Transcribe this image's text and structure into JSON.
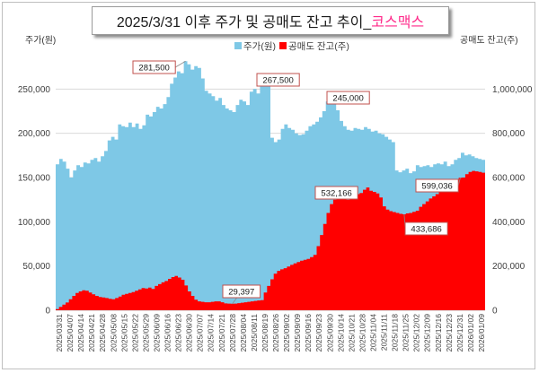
{
  "chart_data": {
    "type": "area",
    "title": "2025/3/31 이후 주가 및 공매도 잔고 추이_",
    "title_company": "코스맥스",
    "left_axis_title": "주가(원)",
    "right_axis_title": "공매도 잔고(주)",
    "ylim_left": [
      0,
      300000
    ],
    "ylim_right": [
      0,
      1200000
    ],
    "left_ticks": [
      "0",
      "50,000",
      "100,000",
      "150,000",
      "200,000",
      "250,000"
    ],
    "right_ticks": [
      "0",
      "200,000",
      "400,000",
      "600,000",
      "800,000",
      "1,000,000"
    ],
    "x_labels": [
      "2025/03/31",
      "2025/04/07",
      "2025/04/14",
      "2025/04/21",
      "2025/04/28",
      "2025/05/08",
      "2025/05/15",
      "2025/05/22",
      "2025/05/29",
      "2025/06/09",
      "2025/06/16",
      "2025/06/23",
      "2025/06/30",
      "2025/07/07",
      "2025/07/14",
      "2025/07/21",
      "2025/07/28",
      "2025/08/04",
      "2025/08/11",
      "2025/08/19",
      "2025/08/26",
      "2025/09/02",
      "2025/09/09",
      "2025/09/16",
      "2025/09/23",
      "2025/09/30",
      "2025/10/14",
      "2025/10/21",
      "2025/10/28",
      "2025/11/04",
      "2025/11/11",
      "2025/11/18",
      "2025/11/25",
      "2025/12/02",
      "2025/12/09",
      "2025/12/16",
      "2025/12/23",
      "2025/12/31",
      "2026/01/02",
      "2026/01/09"
    ],
    "series": [
      {
        "name": "주가(원)",
        "color": "#7ec8e6",
        "axis": "left",
        "values": [
          165000,
          171000,
          168000,
          160000,
          150000,
          158000,
          164000,
          162000,
          167000,
          166000,
          170000,
          172000,
          168000,
          174000,
          180000,
          192000,
          196000,
          193000,
          210000,
          208000,
          207000,
          212000,
          207000,
          211000,
          205000,
          209000,
          221000,
          219000,
          224000,
          230000,
          228000,
          233000,
          241000,
          256000,
          263000,
          270000,
          268000,
          281500,
          278000,
          272000,
          276000,
          274000,
          262000,
          248000,
          245000,
          242000,
          237000,
          240000,
          232000,
          228000,
          226000,
          224000,
          232000,
          238000,
          236000,
          232000,
          247000,
          250000,
          245000,
          262000,
          267500,
          255000,
          195000,
          190000,
          193000,
          205000,
          210000,
          206000,
          204000,
          200000,
          198000,
          199000,
          203000,
          208000,
          210000,
          213000,
          218000,
          225000,
          236000,
          245000,
          240000,
          226000,
          214000,
          208000,
          204000,
          203000,
          206000,
          205000,
          204000,
          207000,
          205000,
          202000,
          203000,
          200000,
          199000,
          196000,
          193000,
          190000,
          158000,
          156000,
          158000,
          160000,
          155000,
          157000,
          164000,
          162000,
          163000,
          164000,
          162000,
          165000,
          166000,
          165000,
          168000,
          163000,
          165000,
          170000,
          172000,
          178000,
          175000,
          176000,
          174000,
          172000,
          171000,
          170000
        ]
      },
      {
        "name": "공매도 잔고(주)",
        "color": "#ff0000",
        "axis": "right",
        "values": [
          5000,
          15000,
          25000,
          35000,
          50000,
          65000,
          78000,
          85000,
          90000,
          88000,
          80000,
          72000,
          65000,
          60000,
          58000,
          55000,
          52000,
          50000,
          55000,
          62000,
          70000,
          74000,
          78000,
          82000,
          88000,
          94000,
          100000,
          98000,
          102000,
          96000,
          110000,
          118000,
          126000,
          132000,
          142000,
          150000,
          155000,
          148000,
          138000,
          112000,
          85000,
          65000,
          48000,
          40000,
          38000,
          36000,
          36000,
          38000,
          40000,
          40000,
          36000,
          31000,
          30000,
          29397,
          30000,
          32000,
          34000,
          36000,
          38000,
          40000,
          42000,
          44000,
          46000,
          80000,
          110000,
          140000,
          165000,
          178000,
          185000,
          190000,
          198000,
          205000,
          212000,
          218000,
          224000,
          228000,
          232000,
          240000,
          250000,
          290000,
          340000,
          390000,
          440000,
          480000,
          500000,
          520000,
          532166,
          510000,
          500000,
          505000,
          515000,
          525000,
          530000,
          545000,
          555000,
          540000,
          535000,
          528000,
          510000,
          470000,
          455000,
          448000,
          444000,
          440000,
          436000,
          433686,
          438000,
          440000,
          445000,
          450000,
          468000,
          480000,
          492000,
          505000,
          515000,
          525000,
          540000,
          552000,
          560000,
          575000,
          580000,
          590000,
          599036,
          600000,
          615000,
          625000,
          630000,
          628000,
          625000,
          622000
        ]
      }
    ],
    "annotations": [
      {
        "text": "281,500",
        "series": 0,
        "index": 37
      },
      {
        "text": "267,500",
        "series": 0,
        "index": 60
      },
      {
        "text": "245,000",
        "series": 0,
        "index": 79
      },
      {
        "text": "29,397",
        "series": 1,
        "index": 53
      },
      {
        "text": "532,166",
        "series": 1,
        "index": 86
      },
      {
        "text": "433,686",
        "series": 1,
        "index": 105
      },
      {
        "text": "599,036",
        "series": 1,
        "index": 122
      }
    ],
    "grid": true,
    "legend_position": "top-center"
  }
}
